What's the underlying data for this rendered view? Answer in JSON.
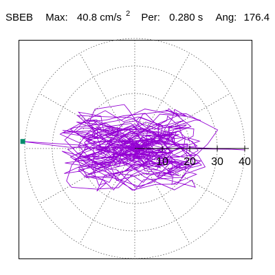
{
  "header": {
    "station": "SBEB",
    "max_label": "Max:",
    "max_value": "40.8 cm/s",
    "max_unit_sup": "2",
    "per_label": "Per:",
    "per_value": "0.280 s",
    "ang_label": "Ang:",
    "ang_value": "176.4"
  },
  "colors": {
    "trace": "#9400d3",
    "grid": "#555555",
    "axis": "#000000",
    "marker": "#008b6b"
  },
  "chart_data": {
    "type": "polar-hodogram",
    "radial_ticks": [
      10,
      20,
      30,
      40
    ],
    "radial_max": 40,
    "angular_grid_step_deg": 30,
    "peak": {
      "magnitude": 40.8,
      "angle_deg": 176.4
    },
    "marker": "square",
    "grid": true
  }
}
